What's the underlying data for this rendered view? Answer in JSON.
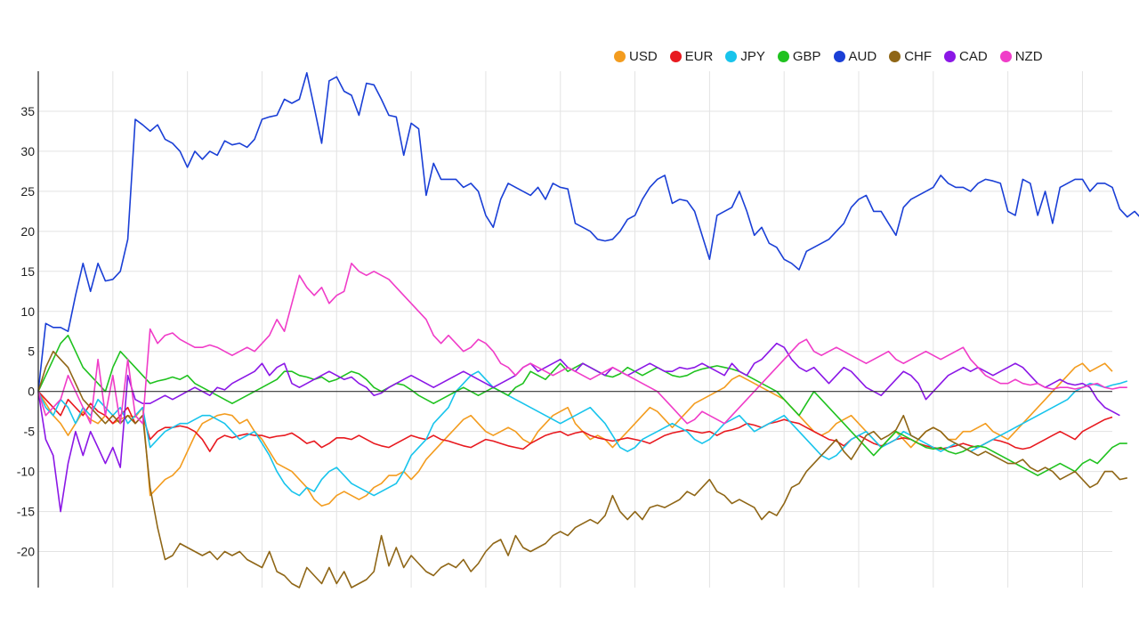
{
  "chart_data": {
    "type": "line",
    "title": "",
    "xlabel": "",
    "ylabel": "",
    "ylim": [
      -24.5,
      40
    ],
    "yticks": [
      -20,
      -15,
      -10,
      -5,
      0,
      5,
      10,
      15,
      20,
      25,
      30,
      35
    ],
    "ytick_labels": [
      "-20",
      "-15",
      "-10",
      "-5",
      "0",
      "5",
      "10",
      "15",
      "20",
      "25",
      "30",
      "35"
    ],
    "x_points": 145,
    "vertical_grid_at": [
      10,
      20,
      30,
      40,
      50,
      60,
      70,
      80,
      90,
      100,
      110,
      120,
      130,
      140
    ],
    "grid": true,
    "legend_position": "top-right",
    "series": [
      {
        "name": "USD",
        "color": "#f39c1f",
        "values": [
          0,
          -1.5,
          -3,
          -4,
          -5.5,
          -4,
          -2.5,
          -3.5,
          -4,
          -3,
          -4,
          -3.5,
          -3,
          -3.2,
          -2,
          -13,
          -12,
          -11,
          -10.5,
          -9.5,
          -7.5,
          -5.5,
          -4,
          -3.5,
          -3,
          -2.8,
          -3,
          -4,
          -3.5,
          -5,
          -6,
          -7.5,
          -9,
          -9.5,
          -10,
          -11,
          -12,
          -13.5,
          -14.3,
          -14,
          -13,
          -12.5,
          -13,
          -13.5,
          -13,
          -12,
          -11.5,
          -10.5,
          -10.5,
          -10,
          -11,
          -10,
          -8.5,
          -7.5,
          -6.5,
          -5.5,
          -4.5,
          -3.5,
          -3,
          -4,
          -5,
          -5.5,
          -5,
          -4.5,
          -5,
          -6,
          -6.5,
          -5,
          -4,
          -3,
          -2.5,
          -2,
          -4,
          -5,
          -6,
          -5.5,
          -6,
          -7,
          -6,
          -5,
          -4,
          -3,
          -2,
          -2.5,
          -3.5,
          -4.5,
          -3.5,
          -2.5,
          -1.5,
          -1,
          -0.5,
          0,
          0.5,
          1.5,
          2,
          1.5,
          1,
          0.5,
          0,
          -0.5,
          -1,
          -2,
          -3,
          -4,
          -5,
          -5.5,
          -5,
          -4,
          -3.5,
          -3,
          -4,
          -5,
          -6,
          -7,
          -6,
          -5,
          -6,
          -7,
          -6,
          -5,
          -4.5,
          -5,
          -6,
          -6,
          -5,
          -5,
          -4.5,
          -4,
          -5,
          -5.5,
          -6,
          -5,
          -4,
          -3,
          -2,
          -1,
          0,
          1,
          2,
          3,
          3.5,
          2.5,
          3,
          3.5,
          2.5
        ]
      },
      {
        "name": "EUR",
        "color": "#e8191f",
        "values": [
          0,
          -1,
          -2,
          -3,
          -1,
          -2,
          -3,
          -1.5,
          -2.5,
          -3,
          -4,
          -3,
          -2,
          -4,
          -3,
          -6,
          -5,
          -4.5,
          -4.5,
          -4.3,
          -4.5,
          -5,
          -6,
          -7.5,
          -6,
          -5.5,
          -5.8,
          -5.5,
          -5.3,
          -5.5,
          -5.5,
          -5.8,
          -5.6,
          -5.5,
          -5.2,
          -5.8,
          -6.5,
          -6.2,
          -7,
          -6.5,
          -5.8,
          -5.8,
          -6,
          -5.5,
          -6,
          -6.5,
          -6.8,
          -7,
          -6.5,
          -6,
          -5.5,
          -5.8,
          -6,
          -5.5,
          -6,
          -6.2,
          -6.5,
          -6.8,
          -7,
          -6.5,
          -6,
          -6.2,
          -6.5,
          -6.8,
          -7,
          -7.2,
          -6.5,
          -6,
          -5.5,
          -5.2,
          -5,
          -5.5,
          -5.2,
          -5,
          -5.5,
          -5.8,
          -6,
          -6.2,
          -6,
          -5.8,
          -6,
          -6.2,
          -6.5,
          -6,
          -5.5,
          -5.2,
          -5,
          -4.8,
          -5,
          -5.2,
          -5,
          -5.5,
          -5,
          -4.8,
          -4.5,
          -4,
          -4.2,
          -4.5,
          -4,
          -3.8,
          -3.5,
          -3.8,
          -4,
          -4.5,
          -5,
          -5.5,
          -6,
          -6.2,
          -6.8,
          -6,
          -5.5,
          -6,
          -6.5,
          -6.8,
          -6.5,
          -6,
          -5.8,
          -6,
          -6.5,
          -6.8,
          -7,
          -7.2,
          -7,
          -6.8,
          -6.5,
          -6.8,
          -7,
          -6.5,
          -6,
          -6.2,
          -6.5,
          -7,
          -7.2,
          -7,
          -6.5,
          -6,
          -5.5,
          -5,
          -5.5,
          -6,
          -5,
          -4.5,
          -4,
          -3.5,
          -3.2
        ]
      },
      {
        "name": "JPY",
        "color": "#18c4ec",
        "values": [
          0,
          -2,
          -3,
          -1,
          -2,
          -4,
          -2,
          -3,
          -1,
          -2,
          -3,
          -2,
          -4,
          -3,
          -2,
          -7,
          -6,
          -5,
          -4.5,
          -4,
          -4,
          -3.5,
          -3,
          -3,
          -3.5,
          -4,
          -5,
          -6,
          -5.5,
          -5,
          -6.5,
          -8,
          -10,
          -11.5,
          -12.5,
          -13,
          -12,
          -12.5,
          -11,
          -10,
          -9.5,
          -10.5,
          -11.5,
          -12,
          -12.5,
          -13,
          -12.5,
          -12,
          -11.5,
          -10,
          -8,
          -7,
          -6,
          -4,
          -3,
          -2,
          0,
          1,
          2,
          2.5,
          1.5,
          0.5,
          0,
          -0.5,
          -1,
          -1.5,
          -2,
          -2.5,
          -3,
          -3.5,
          -4,
          -3.5,
          -3,
          -2.5,
          -2,
          -3,
          -4,
          -5.5,
          -7,
          -7.5,
          -7,
          -6,
          -5.5,
          -5,
          -4.5,
          -4,
          -4.5,
          -5,
          -6,
          -6.5,
          -6,
          -5,
          -4,
          -3.5,
          -3,
          -4,
          -5,
          -4.5,
          -4,
          -3.5,
          -3,
          -4,
          -5,
          -6,
          -7,
          -8,
          -8.5,
          -8,
          -7,
          -6,
          -5.5,
          -5,
          -6,
          -7,
          -6.5,
          -6,
          -5,
          -5.5,
          -6,
          -6.5,
          -7,
          -7.5,
          -7,
          -6.5,
          -7,
          -7.5,
          -7,
          -6.5,
          -6,
          -5.5,
          -5,
          -4.5,
          -4,
          -3.5,
          -3,
          -2.5,
          -2,
          -1.5,
          -1,
          0,
          0.5,
          1,
          0.8,
          0.5,
          0.8,
          1,
          1.3
        ]
      },
      {
        "name": "GBP",
        "color": "#1fc21f",
        "values": [
          0,
          2,
          4,
          6,
          7,
          5,
          3,
          2,
          1,
          0,
          3,
          5,
          4,
          3,
          2,
          1,
          1.3,
          1.5,
          1.8,
          1.5,
          2,
          1,
          0.5,
          0,
          -0.5,
          -1,
          -1.5,
          -1,
          -0.5,
          0,
          0.5,
          1,
          1.5,
          2.5,
          2.5,
          2,
          1.8,
          1.5,
          1.8,
          1.2,
          1.5,
          2,
          2.5,
          2.2,
          1.5,
          0.5,
          0,
          0.5,
          1,
          0.8,
          0.2,
          -0.5,
          -1,
          -1.5,
          -1,
          -0.5,
          0,
          0.5,
          0,
          -0.5,
          0,
          0.5,
          0,
          -0.5,
          0.5,
          1,
          2.5,
          2,
          1.5,
          2.5,
          3.5,
          2.5,
          3,
          3.5,
          3,
          2.5,
          2,
          1.8,
          2.2,
          3,
          2.5,
          2,
          2.5,
          3,
          2.5,
          2,
          1.8,
          2,
          2.5,
          2.8,
          3,
          3.2,
          3,
          2.8,
          2.5,
          2,
          1.5,
          1,
          0.5,
          0,
          -1,
          -2,
          -3,
          -1.5,
          0,
          -1,
          -2,
          -3,
          -4,
          -5,
          -6,
          -7,
          -8,
          -7,
          -6,
          -5,
          -5.5,
          -6,
          -6.5,
          -7,
          -7.2,
          -7,
          -7.5,
          -7.8,
          -7.5,
          -7,
          -6.8,
          -7,
          -7.5,
          -8,
          -8.5,
          -9,
          -9.5,
          -10,
          -10.5,
          -10,
          -9.5,
          -9,
          -9.5,
          -10,
          -9,
          -8.5,
          -9,
          -8,
          -7,
          -6.5,
          -6.5
        ]
      },
      {
        "name": "AUD",
        "color": "#1a3fd6",
        "values": [
          0,
          8.5,
          8,
          8,
          7.5,
          12,
          16,
          12.5,
          16,
          13.8,
          14,
          15,
          19,
          34,
          33.3,
          32.5,
          33.3,
          31.5,
          31,
          30,
          28,
          30,
          29,
          30,
          29.5,
          31.3,
          30.8,
          31,
          30.5,
          31.5,
          34,
          34.3,
          34.5,
          36.5,
          36,
          36.5,
          39.8,
          35.5,
          31,
          38.8,
          39.3,
          37.5,
          37,
          34.5,
          38.5,
          38.3,
          36.5,
          34.5,
          34.3,
          29.5,
          33.5,
          32.8,
          24.5,
          28.5,
          26.5,
          26.5,
          26.5,
          25.5,
          26,
          25,
          22,
          20.5,
          24,
          26,
          25.5,
          25,
          24.5,
          25.5,
          24,
          26,
          25.5,
          25.3,
          21,
          20.5,
          20,
          19,
          18.8,
          19,
          20,
          21.5,
          22,
          24,
          25.5,
          26.5,
          27,
          23.5,
          24,
          23.8,
          22.5,
          19.5,
          16.5,
          22,
          22.5,
          23,
          25,
          22.5,
          19.5,
          20.5,
          18.5,
          18,
          16.5,
          16,
          15.2,
          17.5,
          18,
          18.5,
          19,
          20,
          21,
          23,
          24,
          24.5,
          22.5,
          22.5,
          21,
          19.5,
          23,
          24,
          24.5,
          25,
          25.5,
          27,
          26,
          25.5,
          25.5,
          25,
          26,
          26.5,
          26.3,
          26,
          22.5,
          22,
          26.5,
          26,
          22,
          25,
          21,
          25.5,
          26,
          26.5,
          26.5,
          25,
          26,
          26,
          25.5,
          22.8,
          21.8,
          22.5,
          21.5,
          21
        ]
      },
      {
        "name": "CHF",
        "color": "#8f6616",
        "values": [
          0,
          3,
          5,
          4,
          3,
          1,
          -1,
          -2,
          -3,
          -4,
          -3,
          -4,
          -3,
          -4,
          -3,
          -12,
          -17,
          -21,
          -20.5,
          -19,
          -19.5,
          -20,
          -20.5,
          -20,
          -21,
          -20,
          -20.5,
          -20,
          -21,
          -21.5,
          -22,
          -20,
          -22.5,
          -23,
          -24,
          -24.5,
          -22,
          -23,
          -24,
          -22,
          -24,
          -22.5,
          -24.5,
          -24,
          -23.5,
          -22.5,
          -18,
          -21.8,
          -19.5,
          -22,
          -20.5,
          -21.5,
          -22.5,
          -23,
          -22,
          -21.5,
          -22,
          -21,
          -22.5,
          -21.5,
          -20,
          -19,
          -18.5,
          -20.5,
          -18,
          -19.5,
          -20,
          -19.5,
          -19,
          -18,
          -17.5,
          -18,
          -17,
          -16.5,
          -16,
          -16.5,
          -15.5,
          -13,
          -15,
          -16,
          -15,
          -16,
          -14.5,
          -14.2,
          -14.5,
          -14,
          -13.5,
          -12.5,
          -13,
          -12,
          -11,
          -12.5,
          -13,
          -14,
          -13.5,
          -14,
          -14.5,
          -16,
          -15,
          -15.5,
          -14,
          -12,
          -11.5,
          -10,
          -9,
          -8,
          -7,
          -6,
          -7.5,
          -8.5,
          -7,
          -5.5,
          -5,
          -6,
          -5.5,
          -4.8,
          -3,
          -5.5,
          -6,
          -5,
          -4.5,
          -5,
          -6,
          -6.5,
          -7,
          -7.5,
          -8,
          -7.5,
          -8,
          -8.5,
          -9,
          -9,
          -8.5,
          -9.5,
          -10,
          -9.5,
          -10,
          -11,
          -10.5,
          -10,
          -11,
          -12,
          -11.5,
          -10,
          -10,
          -11,
          -10.8
        ]
      },
      {
        "name": "CAD",
        "color": "#8b17e6",
        "values": [
          0,
          -6,
          -8,
          -15,
          -9,
          -5,
          -8,
          -5,
          -7,
          -9,
          -7,
          -9.5,
          2,
          -1,
          -1.5,
          -1.5,
          -1,
          -0.5,
          -1,
          -0.5,
          0,
          0.5,
          0,
          -0.5,
          0.5,
          0.2,
          1,
          1.5,
          2,
          2.5,
          3.5,
          2,
          3,
          3.5,
          1,
          0.5,
          1,
          1.5,
          2,
          2.5,
          2,
          1.5,
          1.8,
          1,
          0.5,
          -0.5,
          -0.2,
          0.5,
          1,
          1.5,
          2,
          1.5,
          1,
          0.5,
          1,
          1.5,
          2,
          2.5,
          2,
          1.5,
          1,
          0.5,
          1,
          1.5,
          2,
          3,
          3.5,
          2.5,
          3,
          3.5,
          4,
          3,
          2.5,
          3.5,
          3,
          2.5,
          2,
          3,
          2.5,
          2,
          2.5,
          3,
          3.5,
          3,
          2.5,
          2.5,
          3,
          2.8,
          3,
          3.5,
          3,
          2.5,
          2,
          3.5,
          2.5,
          2,
          3.5,
          4,
          5,
          6,
          5.5,
          4,
          3,
          2.5,
          3,
          2,
          1,
          2,
          3,
          2.5,
          1.5,
          0.5,
          0,
          -0.5,
          0.5,
          1.5,
          2.5,
          2,
          1,
          -1,
          0,
          1,
          2,
          2.5,
          3,
          2.5,
          3,
          2.5,
          2,
          2.5,
          3,
          3.5,
          3,
          2,
          1,
          0.5,
          1,
          1.5,
          1,
          0.8,
          1,
          0.5,
          -1,
          -2,
          -2.5,
          -3
        ]
      },
      {
        "name": "NZD",
        "color": "#f03cc8",
        "values": [
          0,
          -3,
          -2,
          -1,
          2,
          0,
          -2,
          -4,
          4,
          -3,
          2,
          -4,
          4,
          -3,
          -4,
          7.8,
          6,
          7,
          7.3,
          6.5,
          6,
          5.5,
          5.5,
          5.8,
          5.5,
          5,
          4.5,
          5,
          5.5,
          5,
          6,
          7,
          9,
          7.5,
          11,
          14.5,
          13,
          12,
          13,
          11,
          12,
          12.5,
          16,
          15,
          14.5,
          15,
          14.5,
          14,
          13,
          12,
          11,
          10,
          9,
          7,
          6,
          7,
          6,
          5,
          5.5,
          6.5,
          6,
          5,
          3.5,
          3,
          2,
          3,
          3.5,
          3,
          2.5,
          2,
          2.5,
          3,
          2.5,
          2,
          1.5,
          2,
          2.5,
          3,
          2.5,
          2,
          1.5,
          1,
          0.5,
          0,
          -1,
          -2,
          -3,
          -4,
          -3.5,
          -2.5,
          -3,
          -3.5,
          -4,
          -3,
          -2,
          -1,
          0,
          1,
          2,
          3,
          4,
          5,
          6,
          6.5,
          5,
          4.5,
          5,
          5.5,
          5,
          4.5,
          4,
          3.5,
          4,
          4.5,
          5,
          4,
          3.5,
          4,
          4.5,
          5,
          4.5,
          4,
          4.5,
          5,
          5.5,
          4,
          3,
          2,
          1.5,
          1,
          1,
          1.5,
          1,
          0.8,
          1,
          0.5,
          0.3,
          0.5,
          0.5,
          0.3,
          0.5,
          0.8,
          1,
          0.5,
          0.3,
          0.5,
          0.5
        ]
      }
    ]
  }
}
